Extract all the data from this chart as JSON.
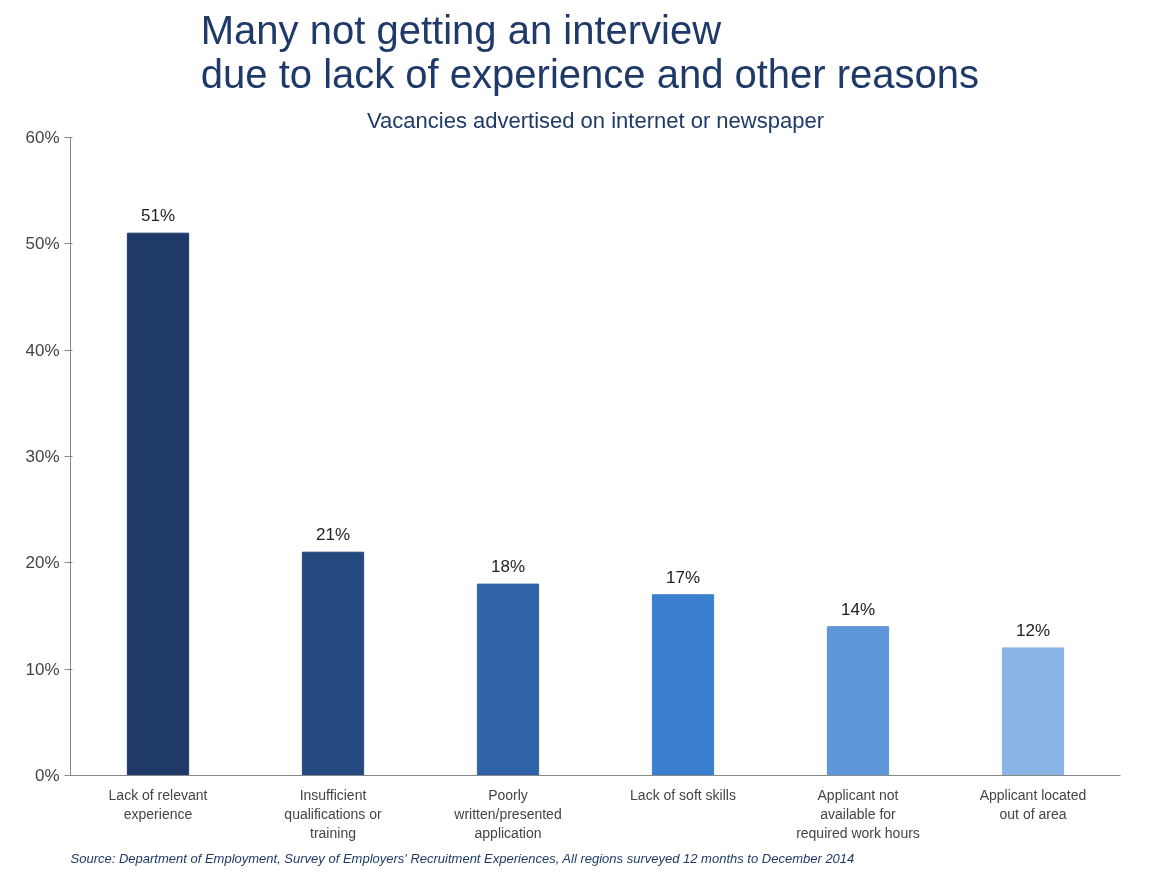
{
  "chart_data": {
    "type": "bar",
    "title": "Many not getting an interview\ndue to lack of experience  and other reasons",
    "subtitle": "Vacancies advertised on internet or newspaper",
    "categories": [
      "Lack of relevant experience",
      "Insufficient qualifications or training",
      "Poorly written/presented application",
      "Lack of soft skills",
      "Applicant not available for required work hours",
      "Applicant located out of area"
    ],
    "values": [
      51,
      21,
      18,
      17,
      14,
      12
    ],
    "colors": [
      "#1f3a68",
      "#24497f",
      "#2e63a8",
      "#3a7fd0",
      "#5f96d9",
      "#8ab4e6"
    ],
    "ylim": [
      0,
      60
    ],
    "yticks": [
      {
        "value": 0,
        "label": "0%"
      },
      {
        "value": 10,
        "label": "10%"
      },
      {
        "value": 20,
        "label": "20%"
      },
      {
        "value": 30,
        "label": "30%"
      },
      {
        "value": 40,
        "label": "40%"
      },
      {
        "value": 50,
        "label": "50%"
      },
      {
        "value": 60,
        "label": "60%"
      }
    ],
    "value_labels": [
      "51%",
      "21%",
      "18%",
      "17%",
      "14%",
      "12%"
    ],
    "grid": false,
    "annotations": [
      "Source: Department of Employment, Survey of Employers' Recruitment Experiences, All regions surveyed 12 months to December 2014"
    ]
  }
}
